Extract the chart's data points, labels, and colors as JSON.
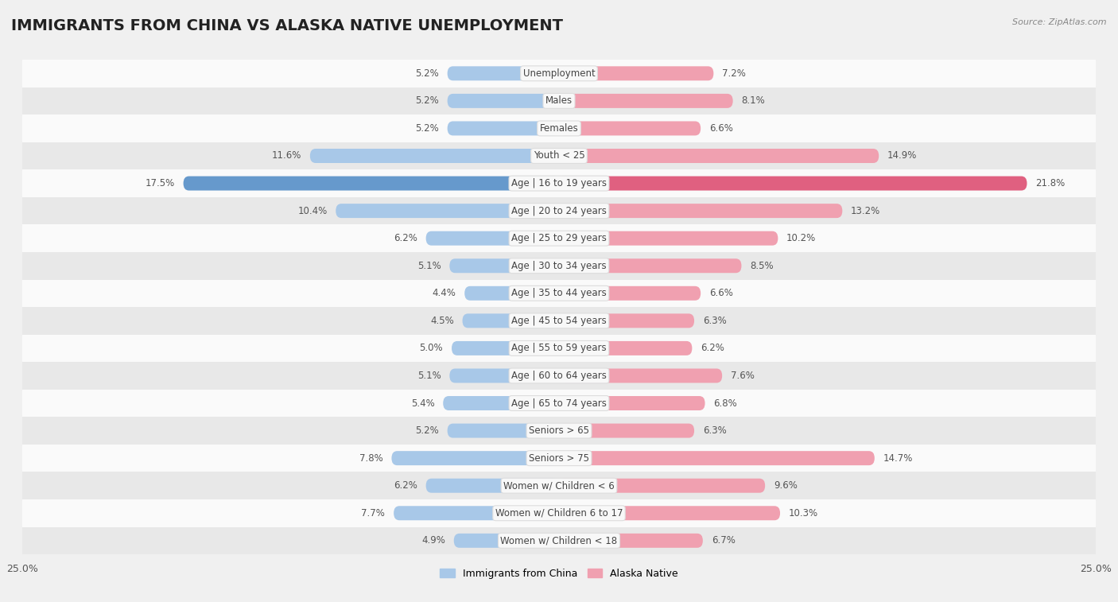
{
  "title": "IMMIGRANTS FROM CHINA VS ALASKA NATIVE UNEMPLOYMENT",
  "source": "Source: ZipAtlas.com",
  "categories": [
    "Unemployment",
    "Males",
    "Females",
    "Youth < 25",
    "Age | 16 to 19 years",
    "Age | 20 to 24 years",
    "Age | 25 to 29 years",
    "Age | 30 to 34 years",
    "Age | 35 to 44 years",
    "Age | 45 to 54 years",
    "Age | 55 to 59 years",
    "Age | 60 to 64 years",
    "Age | 65 to 74 years",
    "Seniors > 65",
    "Seniors > 75",
    "Women w/ Children < 6",
    "Women w/ Children 6 to 17",
    "Women w/ Children < 18"
  ],
  "china_values": [
    5.2,
    5.2,
    5.2,
    11.6,
    17.5,
    10.4,
    6.2,
    5.1,
    4.4,
    4.5,
    5.0,
    5.1,
    5.4,
    5.2,
    7.8,
    6.2,
    7.7,
    4.9
  ],
  "alaska_values": [
    7.2,
    8.1,
    6.6,
    14.9,
    21.8,
    13.2,
    10.2,
    8.5,
    6.6,
    6.3,
    6.2,
    7.6,
    6.8,
    6.3,
    14.7,
    9.6,
    10.3,
    6.7
  ],
  "china_color_normal": "#a8c8e8",
  "china_color_highlight": "#6699cc",
  "alaska_color_normal": "#f0a0b0",
  "alaska_color_highlight": "#e06080",
  "max_value": 25.0,
  "bg_color": "#f0f0f0",
  "row_color_light": "#fafafa",
  "row_color_dark": "#e8e8e8",
  "label_bg_color": "#f8f8f8",
  "label_border_color": "#dddddd",
  "legend_china": "Immigrants from China",
  "legend_alaska": "Alaska Native",
  "title_fontsize": 14,
  "label_fontsize": 8.5,
  "value_fontsize": 8.5
}
